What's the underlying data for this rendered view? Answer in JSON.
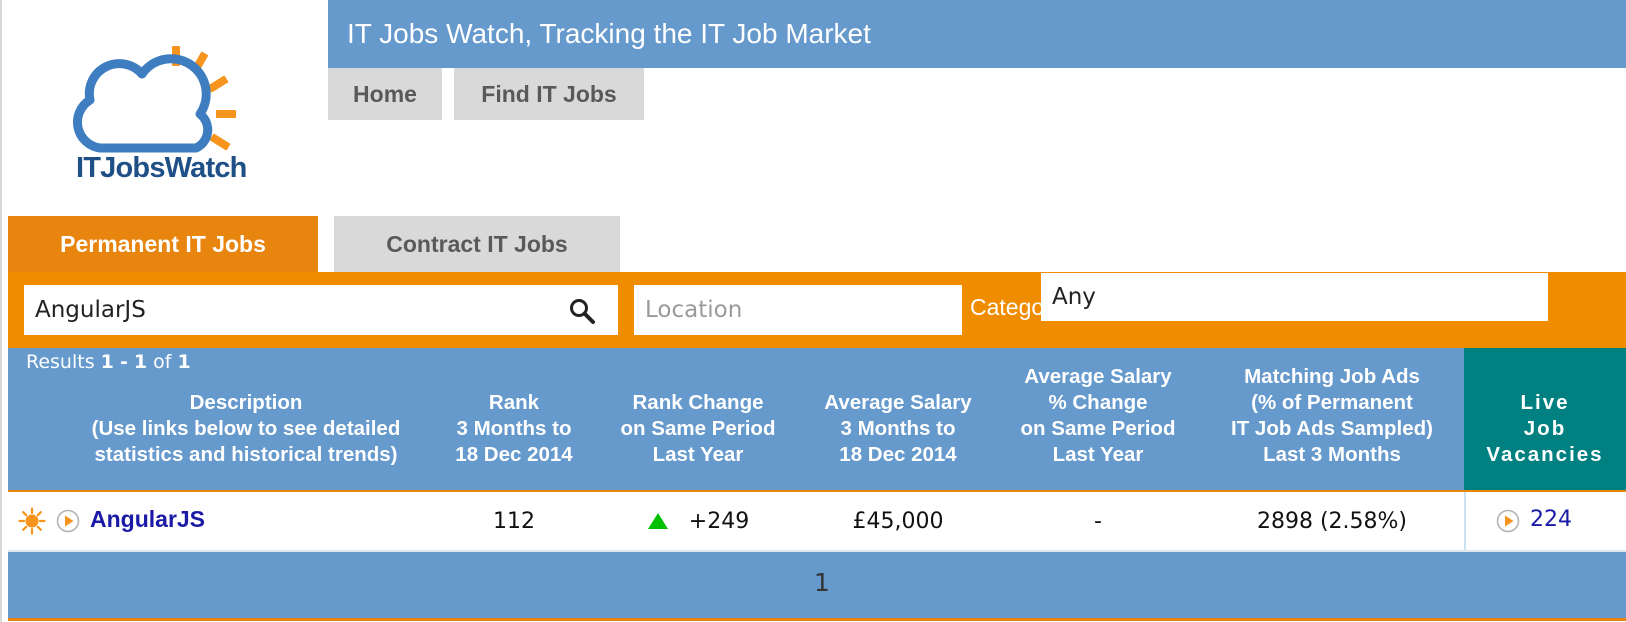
{
  "logo": {
    "text": "ITJobsWatch"
  },
  "header": {
    "title": "IT Jobs Watch, Tracking the IT Job Market"
  },
  "nav": {
    "home": "Home",
    "find": "Find IT Jobs"
  },
  "tabs": {
    "permanent": "Permanent IT Jobs",
    "contract": "Contract IT Jobs"
  },
  "search": {
    "query": "AngularJS",
    "location_placeholder": "Location",
    "category_label": "Category",
    "category_value": "Any"
  },
  "results": {
    "prefix": "Results",
    "from": "1",
    "dash": "-",
    "to": "1",
    "of": "of",
    "total": "1"
  },
  "columns": {
    "description": [
      "Description",
      "(Use links below to see detailed",
      "statistics and historical trends)"
    ],
    "rank": [
      "Rank",
      "3 Months to",
      "18 Dec 2014"
    ],
    "rank_change": [
      "Rank Change",
      "on Same Period",
      "Last Year"
    ],
    "avg_salary": [
      "Average Salary",
      "3 Months to",
      "18 Dec 2014"
    ],
    "salary_change": [
      "Average Salary",
      "% Change",
      "on Same Period",
      "Last Year"
    ],
    "matching_ads": [
      "Matching Job Ads",
      "(% of Permanent",
      "IT Job Ads Sampled)",
      "Last 3 Months"
    ],
    "live": [
      "Live",
      "Job",
      "Vacancies"
    ]
  },
  "rows": [
    {
      "name": "AngularJS",
      "rank": "112",
      "rank_change": "+249",
      "avg_salary": "£45,000",
      "salary_change": "-",
      "matching_ads": "2898 (2.58%)",
      "live_vacancies": "224"
    }
  ],
  "pagination": {
    "current": "1"
  },
  "colors": {
    "header_blue": "#6699cc",
    "orange": "#f08c00",
    "tab_orange": "#e8850f",
    "teal": "#008080",
    "link": "#1a1aa6",
    "up_green": "#00c000"
  }
}
